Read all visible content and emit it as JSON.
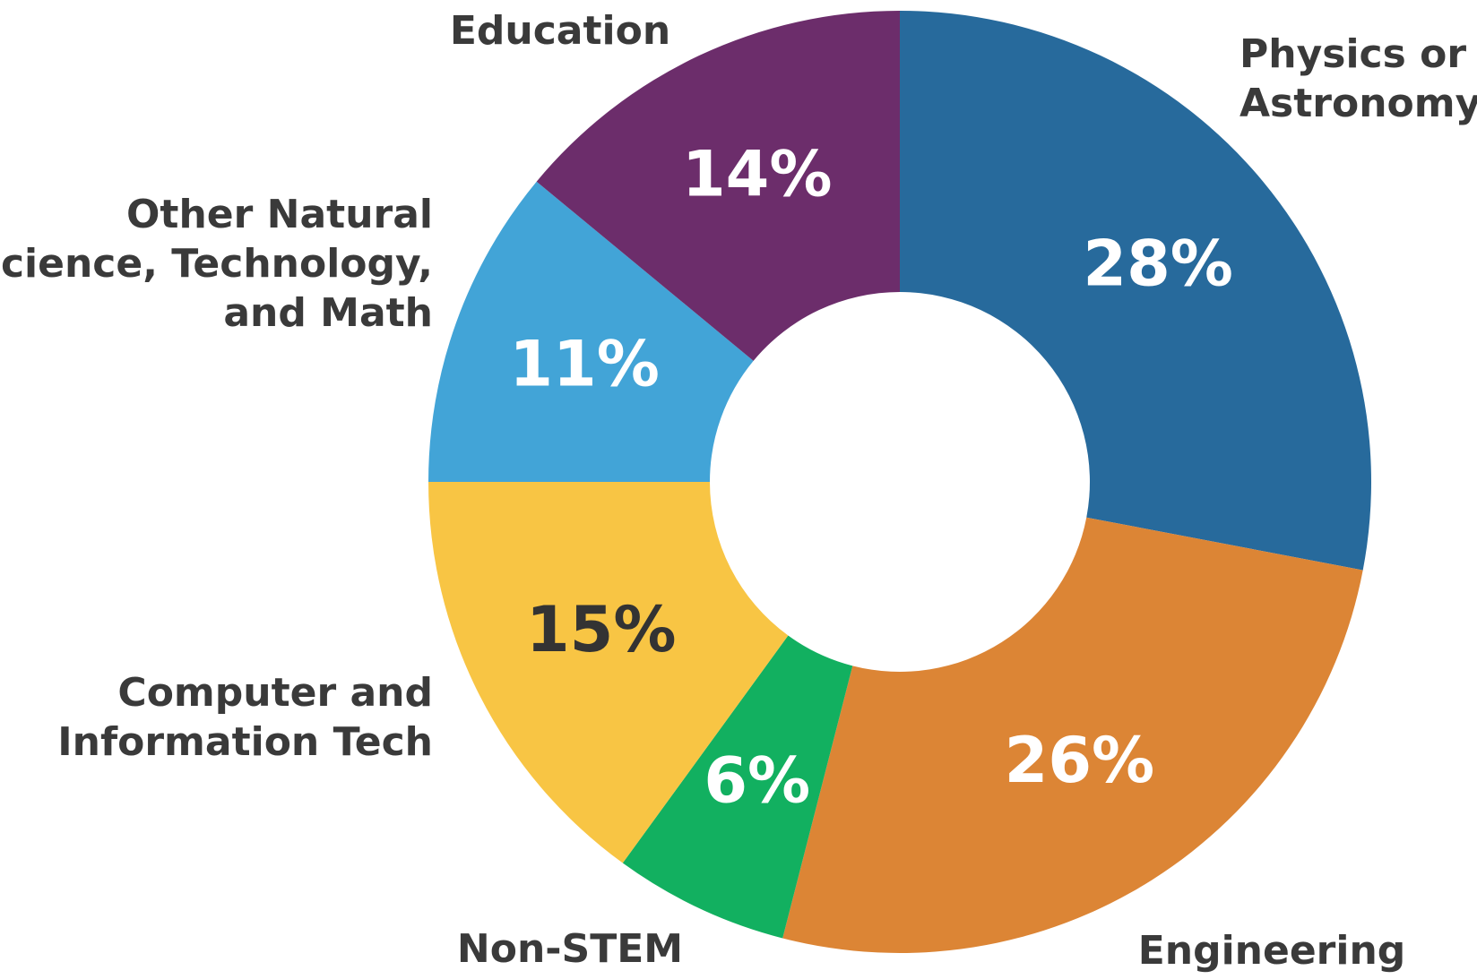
{
  "chart_data": {
    "type": "donut",
    "categories": [
      "Physics or\nAstronomy",
      "Engineering",
      "Non-STEM",
      "Computer and\nInformation Tech",
      "Other Natural\nScience, Technology,\nand Math",
      "Education"
    ],
    "values": [
      28,
      26,
      6,
      15,
      11,
      14
    ],
    "value_labels": [
      "28%",
      "26%",
      "6%",
      "15%",
      "11%",
      "14%"
    ],
    "colors": [
      "#276a9c",
      "#dc8535",
      "#12b060",
      "#f8c544",
      "#42a4d7",
      "#6c2d6b"
    ],
    "value_label_colors": [
      "#ffffff",
      "#ffffff",
      "#ffffff",
      "#333333",
      "#ffffff",
      "#ffffff"
    ]
  }
}
